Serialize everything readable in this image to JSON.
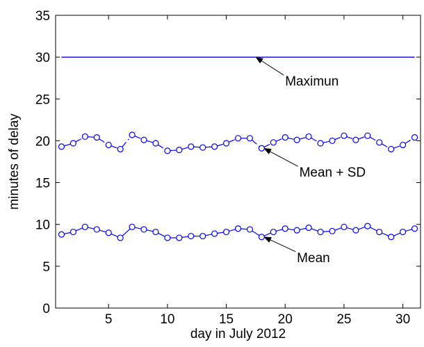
{
  "chart_data": {
    "type": "line",
    "xlabel": "day in July 2012",
    "ylabel": "minutes of delay",
    "xlim": [
      0.5,
      31.5
    ],
    "ylim": [
      0,
      35
    ],
    "xticks": [
      5,
      10,
      15,
      20,
      25,
      30
    ],
    "yticks": [
      0,
      5,
      10,
      15,
      20,
      25,
      30,
      35
    ],
    "grid": false,
    "x": [
      1,
      2,
      3,
      4,
      5,
      6,
      7,
      8,
      9,
      10,
      11,
      12,
      13,
      14,
      15,
      16,
      17,
      18,
      19,
      20,
      21,
      22,
      23,
      24,
      25,
      26,
      27,
      28,
      29,
      30,
      31
    ],
    "series": [
      {
        "key": "mean",
        "line_style": "solid",
        "marker": "circle",
        "color": "#0000ff",
        "values": [
          8.8,
          9.1,
          9.7,
          9.4,
          9.0,
          8.4,
          9.7,
          9.4,
          9.1,
          8.4,
          8.4,
          8.6,
          8.6,
          8.9,
          9.1,
          9.5,
          9.4,
          8.5,
          9.1,
          9.5,
          9.3,
          9.6,
          9.1,
          9.2,
          9.7,
          9.3,
          9.8,
          9.1,
          8.5,
          9.1,
          9.5
        ]
      },
      {
        "key": "mean_plus_sd",
        "line_style": "dashdot",
        "marker": "circle",
        "color": "#0000ff",
        "values": [
          19.3,
          19.7,
          20.5,
          20.4,
          19.5,
          19.0,
          20.7,
          20.1,
          19.7,
          18.8,
          18.9,
          19.3,
          19.2,
          19.3,
          19.7,
          20.3,
          20.3,
          19.1,
          19.8,
          20.4,
          20.1,
          20.5,
          19.7,
          20.0,
          20.6,
          20.1,
          20.6,
          19.8,
          19.0,
          19.5,
          20.4
        ]
      },
      {
        "key": "maximum",
        "line_style": "solid",
        "marker": "none",
        "color": "#0000ff",
        "values": [
          30,
          30,
          30,
          30,
          30,
          30,
          30,
          30,
          30,
          30,
          30,
          30,
          30,
          30,
          30,
          30,
          30,
          30,
          30,
          30,
          30,
          30,
          30,
          30,
          30,
          30,
          30,
          30,
          30,
          30,
          30
        ]
      }
    ],
    "annotations": [
      {
        "key": "maximum",
        "text": "Maximun",
        "point": [
          17.5,
          30.0
        ],
        "text_at": [
          20.0,
          26.6
        ]
      },
      {
        "key": "mean_plus_sd",
        "text": "Mean + SD",
        "point": [
          18.2,
          19.1
        ],
        "text_at": [
          21.2,
          15.7
        ]
      },
      {
        "key": "mean",
        "text": "Mean",
        "point": [
          18.2,
          8.5
        ],
        "text_at": [
          21.0,
          5.5
        ]
      }
    ]
  }
}
